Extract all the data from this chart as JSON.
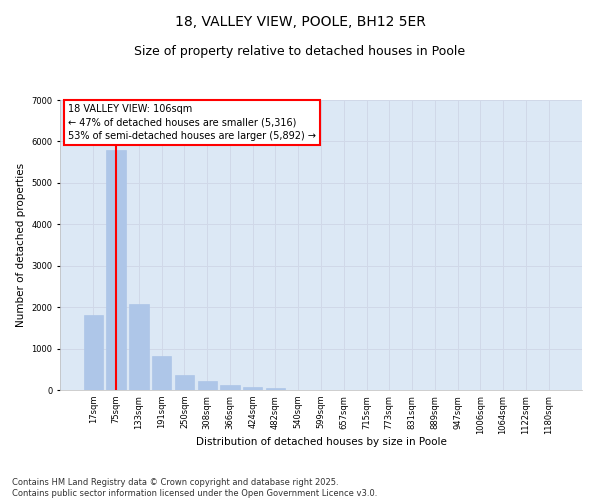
{
  "title_line1": "18, VALLEY VIEW, POOLE, BH12 5ER",
  "title_line2": "Size of property relative to detached houses in Poole",
  "xlabel": "Distribution of detached houses by size in Poole",
  "ylabel": "Number of detached properties",
  "categories": [
    "17sqm",
    "75sqm",
    "133sqm",
    "191sqm",
    "250sqm",
    "308sqm",
    "366sqm",
    "424sqm",
    "482sqm",
    "540sqm",
    "599sqm",
    "657sqm",
    "715sqm",
    "773sqm",
    "831sqm",
    "889sqm",
    "947sqm",
    "1006sqm",
    "1064sqm",
    "1122sqm",
    "1180sqm"
  ],
  "values": [
    1800,
    5800,
    2080,
    820,
    360,
    220,
    110,
    80,
    60,
    0,
    0,
    0,
    0,
    0,
    0,
    0,
    0,
    0,
    0,
    0,
    0
  ],
  "bar_color": "#aec6e8",
  "bar_edgecolor": "#aec6e8",
  "vline_x": 1,
  "vline_color": "red",
  "vline_linewidth": 1.5,
  "annotation_title": "18 VALLEY VIEW: 106sqm",
  "annotation_line1": "← 47% of detached houses are smaller (5,316)",
  "annotation_line2": "53% of semi-detached houses are larger (5,892) →",
  "annotation_box_color": "white",
  "annotation_box_edgecolor": "red",
  "ylim": [
    0,
    7000
  ],
  "yticks": [
    0,
    1000,
    2000,
    3000,
    4000,
    5000,
    6000,
    7000
  ],
  "grid_color": "#d0d8e8",
  "bg_color": "#dce8f5",
  "footer_line1": "Contains HM Land Registry data © Crown copyright and database right 2025.",
  "footer_line2": "Contains public sector information licensed under the Open Government Licence v3.0.",
  "title_fontsize": 10,
  "subtitle_fontsize": 9,
  "axis_label_fontsize": 7.5,
  "tick_fontsize": 6,
  "annotation_fontsize": 7,
  "footer_fontsize": 6
}
